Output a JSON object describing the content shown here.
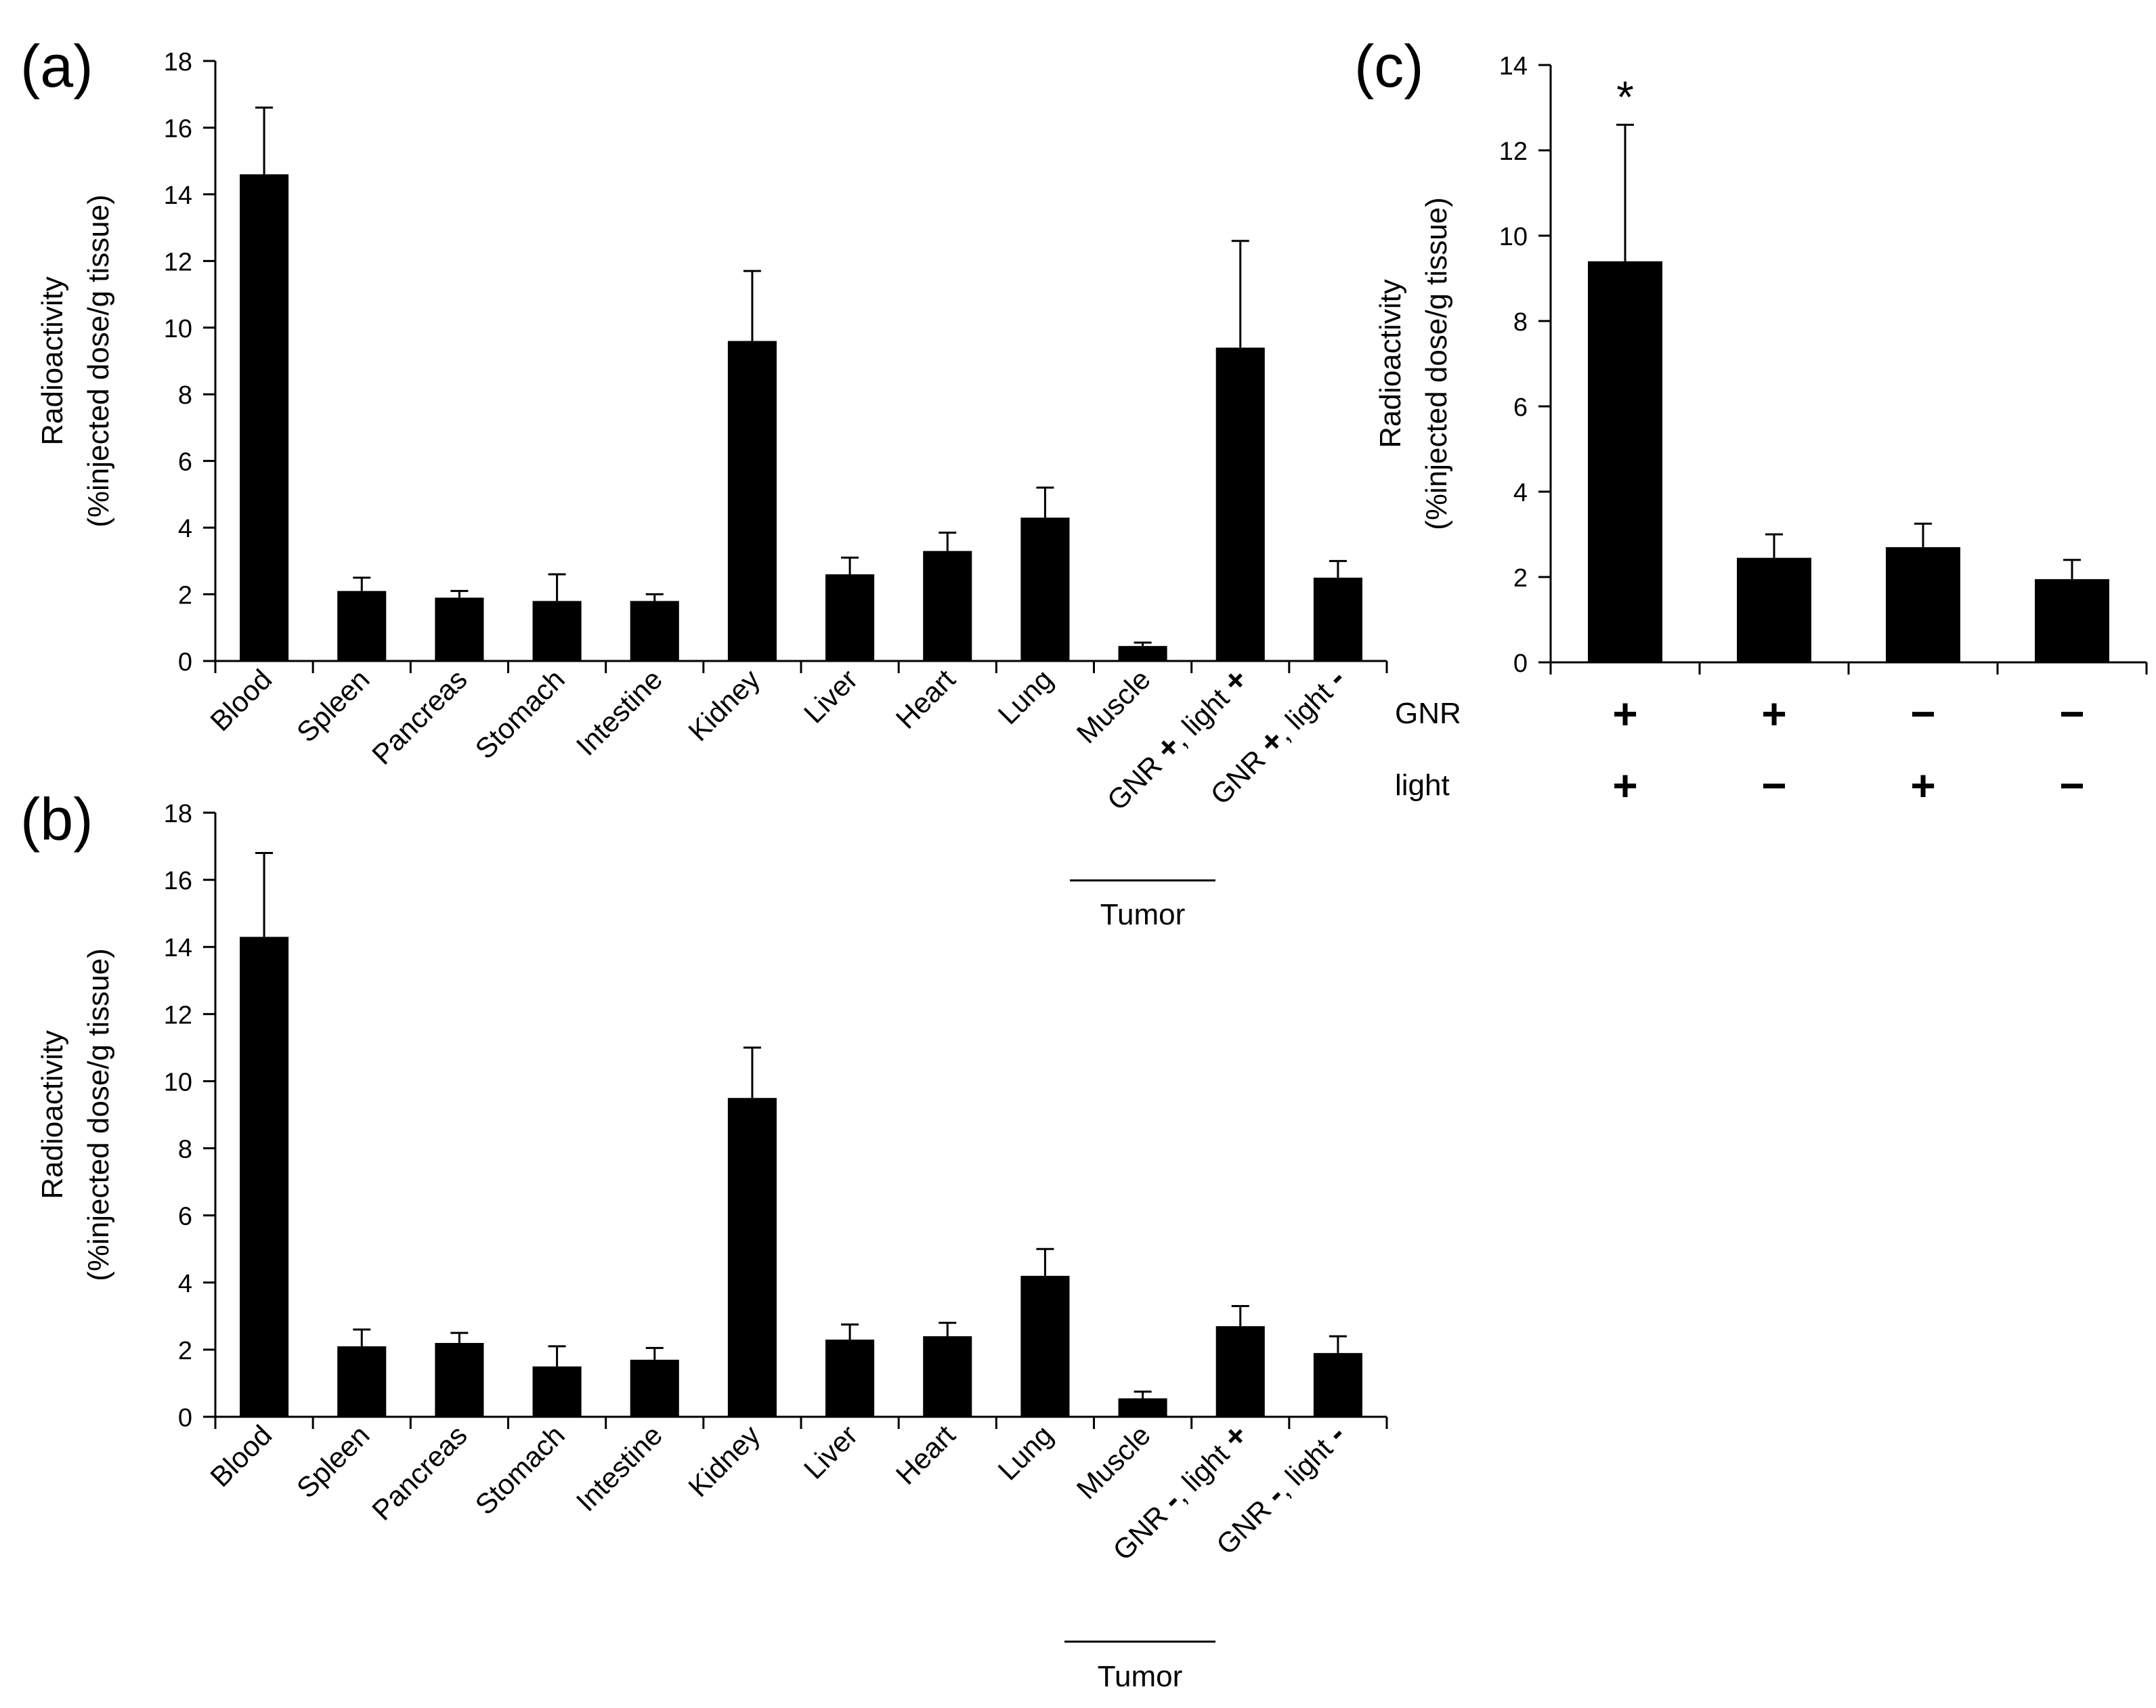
{
  "colors": {
    "bar": "#000000",
    "axis": "#000000",
    "background": "#ffffff"
  },
  "chart_data": [
    {
      "id": "a",
      "panel_label": "(a)",
      "type": "bar",
      "ylabel_line1": "Radioactivity",
      "ylabel_line2": "(%injected dose/g tissue)",
      "ylim": [
        0,
        18
      ],
      "yticks": [
        0,
        2,
        4,
        6,
        8,
        10,
        12,
        14,
        16,
        18
      ],
      "categories": [
        "Blood",
        "Spleen",
        "Pancreas",
        "Stomach",
        "Intestine",
        "Kidney",
        "Liver",
        "Heart",
        "Lung",
        "Muscle",
        "GNR +, light +",
        "GNR +, light -"
      ],
      "category_parts": [
        [
          "Blood"
        ],
        [
          "Spleen"
        ],
        [
          "Pancreas"
        ],
        [
          "Stomach"
        ],
        [
          "Intestine"
        ],
        [
          "Kidney"
        ],
        [
          "Liver"
        ],
        [
          "Heart"
        ],
        [
          "Lung"
        ],
        [
          "Muscle"
        ],
        [
          "GNR ",
          "+",
          ", light ",
          "+"
        ],
        [
          "GNR ",
          "+",
          ", light ",
          "-"
        ]
      ],
      "values": [
        14.6,
        2.1,
        1.9,
        1.8,
        1.8,
        9.6,
        2.6,
        3.3,
        4.3,
        0.45,
        9.4,
        2.5
      ],
      "errors": [
        2.0,
        0.4,
        0.2,
        0.8,
        0.2,
        2.1,
        0.5,
        0.55,
        0.9,
        0.1,
        3.2,
        0.5
      ],
      "group_label": "Tumor"
    },
    {
      "id": "b",
      "panel_label": "(b)",
      "type": "bar",
      "ylabel_line1": "Radioactivity",
      "ylabel_line2": "(%injected dose/g tissue)",
      "ylim": [
        0,
        18
      ],
      "yticks": [
        0,
        2,
        4,
        6,
        8,
        10,
        12,
        14,
        16,
        18
      ],
      "categories": [
        "Blood",
        "Spleen",
        "Pancreas",
        "Stomach",
        "Intestine",
        "Kidney",
        "Liver",
        "Heart",
        "Lung",
        "Muscle",
        "GNR -, light +",
        "GNR -, light -"
      ],
      "category_parts": [
        [
          "Blood"
        ],
        [
          "Spleen"
        ],
        [
          "Pancreas"
        ],
        [
          "Stomach"
        ],
        [
          "Intestine"
        ],
        [
          "Kidney"
        ],
        [
          "Liver"
        ],
        [
          "Heart"
        ],
        [
          "Lung"
        ],
        [
          "Muscle"
        ],
        [
          "GNR ",
          "-",
          ", light ",
          "+"
        ],
        [
          "GNR ",
          "-",
          ", light ",
          "-"
        ]
      ],
      "values": [
        14.3,
        2.1,
        2.2,
        1.5,
        1.7,
        9.5,
        2.3,
        2.4,
        4.2,
        0.55,
        2.7,
        1.9
      ],
      "errors": [
        2.5,
        0.5,
        0.3,
        0.6,
        0.35,
        1.5,
        0.45,
        0.4,
        0.8,
        0.2,
        0.6,
        0.5
      ],
      "group_label": "Tumor"
    },
    {
      "id": "c",
      "panel_label": "(c)",
      "type": "bar",
      "ylabel_line1": "Radioactivity",
      "ylabel_line2": "(%injected dose/g tissue)",
      "ylim": [
        0,
        14
      ],
      "yticks": [
        0,
        2,
        4,
        6,
        8,
        10,
        12,
        14
      ],
      "values": [
        9.4,
        2.45,
        2.7,
        1.95
      ],
      "errors": [
        3.2,
        0.55,
        0.55,
        0.45
      ],
      "annotations": [
        "*",
        "",
        "",
        ""
      ],
      "row_labels": [
        "GNR",
        "light"
      ],
      "gnr_signs": [
        "+",
        "+",
        "−",
        "−"
      ],
      "light_signs": [
        "+",
        "−",
        "+",
        "−"
      ]
    }
  ]
}
